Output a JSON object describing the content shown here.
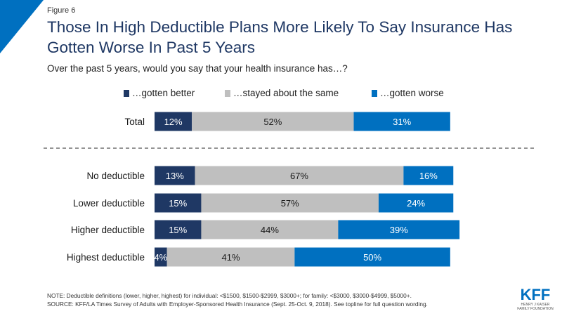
{
  "figure_label": "Figure 6",
  "title": "Those In High Deductible Plans More Likely To Say Insurance Has Gotten Worse In Past 5 Years",
  "subtitle": "Over the past 5 years, would you say that your health insurance has…?",
  "footer": {
    "note": "NOTE: Deductible definitions (lower, higher, highest) for individual: <$1500, $1500-$2999, $3000+; for family: <$3000, $3000-$4999, $5000+.",
    "source": "SOURCE: KFF/LA Times Survey of Adults with Employer-Sponsored Health Insurance (Sept. 25-Oct. 9, 2018). See topline for full question wording."
  },
  "logo": {
    "name": "KFF",
    "sub1": "HENRY J KAISER",
    "sub2": "FAMILY FOUNDATION"
  },
  "colors": {
    "better": "#1f3864",
    "same": "#bfbfbf",
    "worse": "#0070c0",
    "title": "#1f3864",
    "accent_corner": "#0070c0"
  },
  "chart_data": {
    "type": "bar",
    "orientation": "horizontal",
    "stacked": true,
    "categories": [
      "Total",
      "No deductible",
      "Lower deductible",
      "Higher deductible",
      "Highest deductible"
    ],
    "series": [
      {
        "name": "…gotten better",
        "values": [
          12,
          13,
          15,
          15,
          4
        ]
      },
      {
        "name": "…stayed about the same",
        "values": [
          52,
          67,
          57,
          44,
          41
        ]
      },
      {
        "name": "…gotten worse",
        "values": [
          31,
          16,
          24,
          39,
          50
        ]
      }
    ],
    "value_suffix": "%",
    "separator_after_category": "Total",
    "legend_position": "top",
    "grid": false
  }
}
